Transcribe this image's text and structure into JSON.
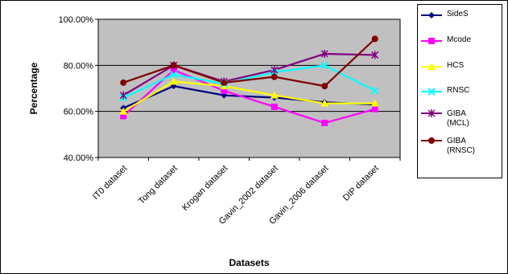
{
  "chart_data": {
    "type": "line",
    "categories": [
      "IT0 dataset",
      "Tong dataset",
      "Krogan dataset",
      "Gavin_2002 dataset",
      "Gavin_2006 dataset",
      "DIP dataset"
    ],
    "xlabel": "Datasets",
    "ylabel": "Percentage",
    "ylim": [
      40,
      100
    ],
    "yticks": [
      "40.00%",
      "60.00%",
      "80.00%",
      "100.00%"
    ],
    "ytick_values": [
      40,
      60,
      80,
      100
    ],
    "grid": true,
    "legend_position": "right",
    "plot_background": "#c0c0c0",
    "series": [
      {
        "name": "SideS",
        "color": "#000080",
        "marker": "diamond",
        "values": [
          61.5,
          71,
          67,
          66,
          64,
          63
        ]
      },
      {
        "name": "Mcode",
        "color": "#ff00ff",
        "marker": "square",
        "values": [
          58,
          78,
          69,
          62,
          55,
          61
        ]
      },
      {
        "name": "HCS",
        "color": "#ffff00",
        "marker": "triangle",
        "values": [
          60,
          73,
          71,
          67,
          63.5,
          63.5
        ]
      },
      {
        "name": "RNSC",
        "color": "#00ffff",
        "marker": "x",
        "values": [
          66,
          76,
          72,
          77,
          80,
          69
        ]
      },
      {
        "name": "GIBA (MCL)",
        "name_lines": [
          "GIBA",
          "(MCL)"
        ],
        "color": "#800080",
        "marker": "star",
        "values": [
          67,
          80,
          73,
          78,
          85,
          84.5
        ]
      },
      {
        "name": "GIBA (RNSC)",
        "name_lines": [
          "GIBA",
          "(RNSC)"
        ],
        "color": "#800000",
        "marker": "circle",
        "values": [
          72.5,
          80,
          72.5,
          75,
          71,
          91.5
        ]
      }
    ]
  }
}
